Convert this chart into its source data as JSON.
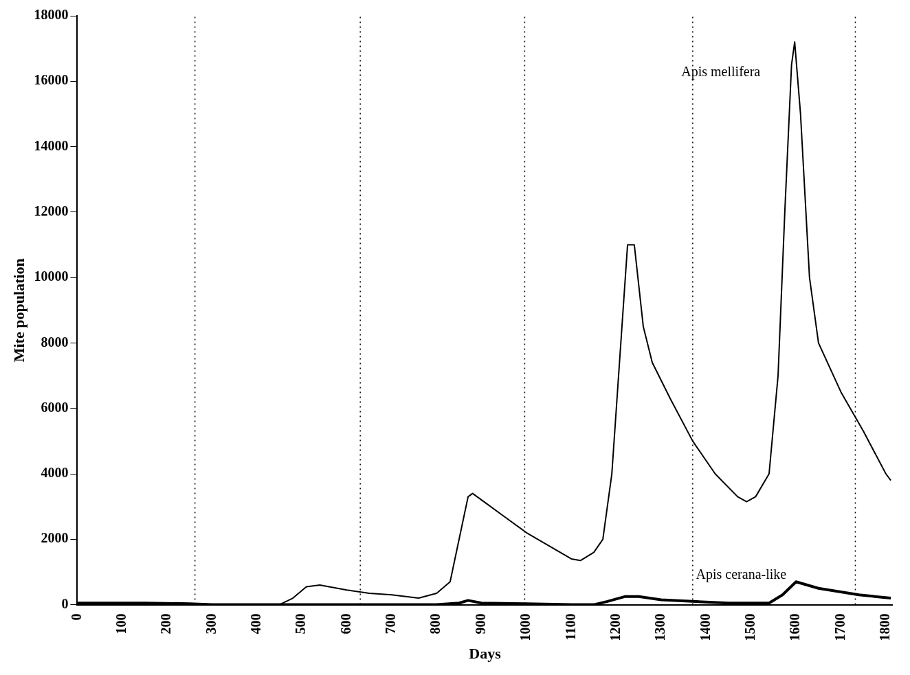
{
  "chart_data": {
    "type": "line",
    "xlabel": "Days",
    "ylabel": "Mite population",
    "xlim": [
      0,
      1815
    ],
    "xticks": [
      0,
      100,
      200,
      300,
      400,
      500,
      600,
      700,
      800,
      900,
      1000,
      1100,
      1200,
      1300,
      1400,
      1500,
      1600,
      1700,
      1800
    ],
    "ylim": [
      0,
      18000
    ],
    "yticks": [
      0,
      2000,
      4000,
      6000,
      8000,
      10000,
      12000,
      14000,
      16000,
      18000
    ],
    "grid": false,
    "legend": false,
    "marker": "none",
    "line_style": "solid",
    "ref_lines": [
      {
        "axis": "x",
        "value": 262,
        "line_style": "dotted",
        "color": "#000000"
      },
      {
        "axis": "x",
        "value": 630,
        "line_style": "dotted",
        "color": "#000000"
      },
      {
        "axis": "x",
        "value": 996,
        "line_style": "dotted",
        "color": "#000000"
      },
      {
        "axis": "x",
        "value": 1370,
        "line_style": "dotted",
        "color": "#000000"
      },
      {
        "axis": "x",
        "value": 1732,
        "line_style": "dotted",
        "color": "#000000"
      }
    ],
    "series": [
      {
        "name": "Apis mellifera",
        "color": "#000000",
        "x": [
          0,
          100,
          200,
          300,
          400,
          450,
          480,
          510,
          540,
          600,
          650,
          700,
          760,
          800,
          830,
          850,
          870,
          880,
          900,
          950,
          1000,
          1050,
          1100,
          1120,
          1150,
          1170,
          1190,
          1210,
          1225,
          1240,
          1260,
          1280,
          1320,
          1370,
          1420,
          1470,
          1490,
          1510,
          1540,
          1560,
          1575,
          1590,
          1597,
          1610,
          1630,
          1650,
          1700,
          1750,
          1800,
          1811
        ],
        "values": [
          50,
          40,
          50,
          0,
          0,
          0,
          200,
          550,
          600,
          450,
          350,
          300,
          200,
          350,
          700,
          2000,
          3300,
          3400,
          3200,
          2700,
          2200,
          1800,
          1400,
          1350,
          1600,
          2000,
          4000,
          8000,
          11000,
          11000,
          8500,
          7400,
          6300,
          5000,
          4000,
          3300,
          3150,
          3300,
          4000,
          7000,
          12000,
          16500,
          17200,
          15000,
          10000,
          8000,
          6500,
          5300,
          4000,
          3800
        ]
      },
      {
        "name": "Apis cerana-like",
        "color": "#000000",
        "x": [
          0,
          150,
          250,
          300,
          450,
          500,
          650,
          800,
          850,
          870,
          900,
          1000,
          1100,
          1150,
          1180,
          1220,
          1250,
          1300,
          1370,
          1450,
          1540,
          1570,
          1600,
          1650,
          1740,
          1811
        ],
        "values": [
          50,
          50,
          30,
          0,
          0,
          0,
          0,
          0,
          50,
          130,
          50,
          30,
          0,
          0,
          100,
          250,
          250,
          150,
          100,
          50,
          50,
          300,
          700,
          500,
          300,
          200
        ]
      }
    ]
  }
}
